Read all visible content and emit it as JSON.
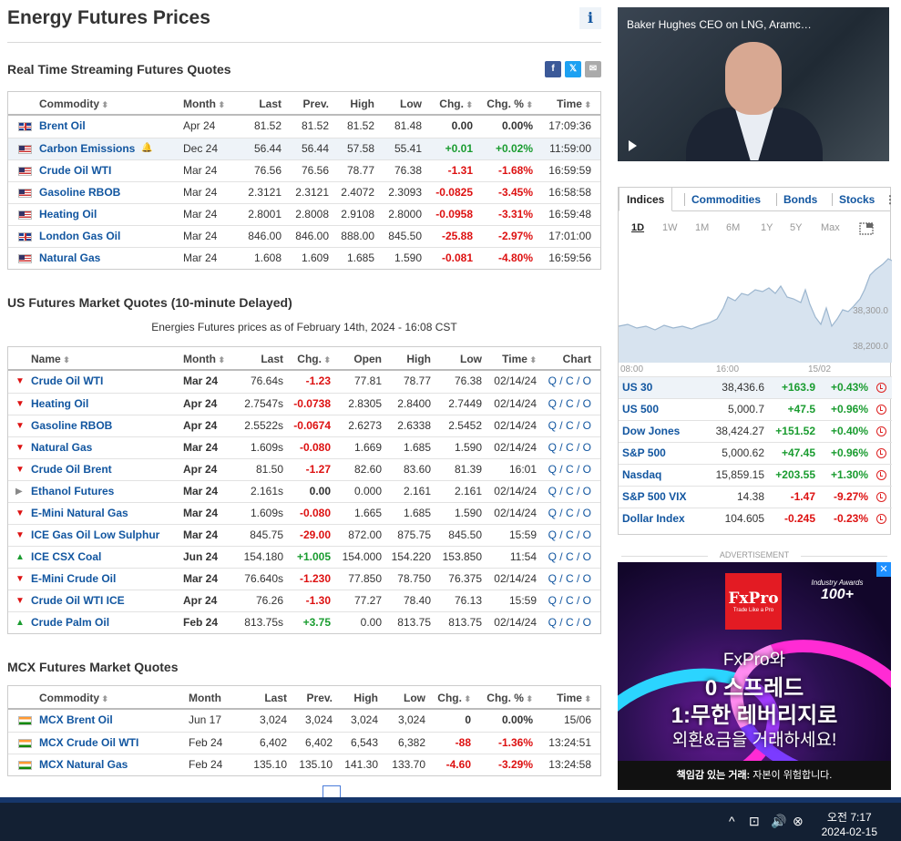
{
  "page": {
    "title": "Energy Futures Prices",
    "info_icon": "i"
  },
  "realtime": {
    "title": "Real Time Streaming Futures Quotes",
    "social": [
      {
        "name": "facebook-icon",
        "glyph": "f",
        "color": "#3b5998"
      },
      {
        "name": "x-twitter-icon",
        "glyph": "𝕏",
        "color": "#1da1f2"
      },
      {
        "name": "email-icon",
        "glyph": "✉",
        "color": "#aaa"
      }
    ],
    "headers": [
      "Commodity",
      "Month",
      "Last",
      "Prev.",
      "High",
      "Low",
      "Chg.",
      "Chg. %",
      "Time"
    ],
    "rows": [
      {
        "flag": "uk",
        "name": "Brent Oil",
        "month": "Apr 24",
        "last": "81.52",
        "prev": "81.52",
        "high": "81.52",
        "low": "81.48",
        "chg": "0.00",
        "pct": "0.00%",
        "time": "17:09:36",
        "dir": "nt"
      },
      {
        "flag": "us",
        "name": "Carbon Emissions",
        "month": "Dec 24",
        "last": "56.44",
        "prev": "56.44",
        "high": "57.58",
        "low": "55.41",
        "chg": "+0.01",
        "pct": "+0.02%",
        "time": "11:59:00",
        "dir": "pos",
        "hl": true
      },
      {
        "flag": "us",
        "name": "Crude Oil WTI",
        "month": "Mar 24",
        "last": "76.56",
        "prev": "76.56",
        "high": "78.77",
        "low": "76.38",
        "chg": "-1.31",
        "pct": "-1.68%",
        "time": "16:59:59",
        "dir": "neg"
      },
      {
        "flag": "us",
        "name": "Gasoline RBOB",
        "month": "Mar 24",
        "last": "2.3121",
        "prev": "2.3121",
        "high": "2.4072",
        "low": "2.3093",
        "chg": "-0.0825",
        "pct": "-3.45%",
        "time": "16:58:58",
        "dir": "neg"
      },
      {
        "flag": "us",
        "name": "Heating Oil",
        "month": "Mar 24",
        "last": "2.8001",
        "prev": "2.8008",
        "high": "2.9108",
        "low": "2.8000",
        "chg": "-0.0958",
        "pct": "-3.31%",
        "time": "16:59:48",
        "dir": "neg"
      },
      {
        "flag": "uk",
        "name": "London Gas Oil",
        "month": "Mar 24",
        "last": "846.00",
        "prev": "846.00",
        "high": "888.00",
        "low": "845.50",
        "chg": "-25.88",
        "pct": "-2.97%",
        "time": "17:01:00",
        "dir": "neg"
      },
      {
        "flag": "us",
        "name": "Natural Gas",
        "month": "Mar 24",
        "last": "1.608",
        "prev": "1.609",
        "high": "1.685",
        "low": "1.590",
        "chg": "-0.081",
        "pct": "-4.80%",
        "time": "16:59:56",
        "dir": "neg"
      }
    ]
  },
  "us": {
    "title": "US Futures Market Quotes (10-minute Delayed)",
    "subtitle": "Energies Futures prices as of February 14th, 2024 - 16:08 CST",
    "headers": [
      "Name",
      "Month",
      "Last",
      "Chg.",
      "Open",
      "High",
      "Low",
      "Time",
      "Chart"
    ],
    "rows": [
      {
        "dir": "dn",
        "name": "Crude Oil WTI",
        "month": "Mar 24",
        "last": "76.64s",
        "chg": "-1.23",
        "open": "77.81",
        "high": "78.77",
        "low": "76.38",
        "time": "02/14/24"
      },
      {
        "dir": "dn",
        "name": "Heating Oil",
        "month": "Apr 24",
        "last": "2.7547s",
        "chg": "-0.0738",
        "open": "2.8305",
        "high": "2.8400",
        "low": "2.7449",
        "time": "02/14/24"
      },
      {
        "dir": "dn",
        "name": "Gasoline RBOB",
        "month": "Apr 24",
        "last": "2.5522s",
        "chg": "-0.0674",
        "open": "2.6273",
        "high": "2.6338",
        "low": "2.5452",
        "time": "02/14/24"
      },
      {
        "dir": "dn",
        "name": "Natural Gas",
        "month": "Mar 24",
        "last": "1.609s",
        "chg": "-0.080",
        "open": "1.669",
        "high": "1.685",
        "low": "1.590",
        "time": "02/14/24"
      },
      {
        "dir": "dn",
        "name": "Crude Oil Brent",
        "month": "Apr 24",
        "last": "81.50",
        "chg": "-1.27",
        "open": "82.60",
        "high": "83.60",
        "low": "81.39",
        "time": "16:01"
      },
      {
        "dir": "nt",
        "name": "Ethanol Futures",
        "month": "Mar 24",
        "last": "2.161s",
        "chg": "0.00",
        "open": "0.000",
        "high": "2.161",
        "low": "2.161",
        "time": "02/14/24"
      },
      {
        "dir": "dn",
        "name": "E-Mini Natural Gas",
        "month": "Mar 24",
        "last": "1.609s",
        "chg": "-0.080",
        "open": "1.665",
        "high": "1.685",
        "low": "1.590",
        "time": "02/14/24"
      },
      {
        "dir": "dn",
        "name": "ICE Gas Oil Low Sulphur",
        "month": "Mar 24",
        "last": "845.75",
        "chg": "-29.00",
        "open": "872.00",
        "high": "875.75",
        "low": "845.50",
        "time": "15:59"
      },
      {
        "dir": "up",
        "name": "ICE CSX Coal",
        "month": "Jun 24",
        "last": "154.180",
        "chg": "+1.005",
        "open": "154.000",
        "high": "154.220",
        "low": "153.850",
        "time": "11:54"
      },
      {
        "dir": "dn",
        "name": "E-Mini Crude Oil",
        "month": "Mar 24",
        "last": "76.640s",
        "chg": "-1.230",
        "open": "77.850",
        "high": "78.750",
        "low": "76.375",
        "time": "02/14/24"
      },
      {
        "dir": "dn",
        "name": "Crude Oil WTI ICE",
        "month": "Apr 24",
        "last": "76.26",
        "chg": "-1.30",
        "open": "77.27",
        "high": "78.40",
        "low": "76.13",
        "time": "15:59"
      },
      {
        "dir": "up",
        "name": "Crude Palm Oil",
        "month": "Feb 24",
        "last": "813.75s",
        "chg": "+3.75",
        "open": "0.00",
        "high": "813.75",
        "low": "813.75",
        "time": "02/14/24"
      }
    ],
    "chart_links": [
      "Q",
      "C",
      "O"
    ]
  },
  "mcx": {
    "title": "MCX Futures Market Quotes",
    "headers": [
      "Commodity",
      "Month",
      "Last",
      "Prev.",
      "High",
      "Low",
      "Chg.",
      "Chg. %",
      "Time"
    ],
    "rows": [
      {
        "name": "MCX Brent Oil",
        "month": "Jun 17",
        "last": "3,024",
        "prev": "3,024",
        "high": "3,024",
        "low": "3,024",
        "chg": "0",
        "pct": "0.00%",
        "time": "15/06",
        "dir": "nt"
      },
      {
        "name": "MCX Crude Oil WTI",
        "month": "Feb 24",
        "last": "6,402",
        "prev": "6,402",
        "high": "6,543",
        "low": "6,382",
        "chg": "-88",
        "pct": "-1.36%",
        "time": "13:24:51",
        "dir": "neg"
      },
      {
        "name": "MCX Natural Gas",
        "month": "Feb 24",
        "last": "135.10",
        "prev": "135.10",
        "high": "141.30",
        "low": "133.70",
        "chg": "-4.60",
        "pct": "-3.29%",
        "time": "13:24:58",
        "dir": "neg"
      }
    ]
  },
  "video": {
    "title": "Baker Hughes CEO on LNG, Aramc…"
  },
  "markets": {
    "tabs": [
      "Indices",
      "Commodities",
      "Bonds",
      "Stocks"
    ],
    "more": "⋮",
    "ranges": [
      "1D",
      "1W",
      "1M",
      "6M",
      "1Y",
      "5Y",
      "Max"
    ],
    "chart_labels": {
      "y1": "38,300.0",
      "y2": "38,200.0",
      "x1": "08:00",
      "x2": "16:00",
      "x3": "15/02"
    },
    "rows": [
      {
        "name": "US 30",
        "last": "38,436.6",
        "chg": "+163.9",
        "pct": "+0.43%",
        "dir": "pos",
        "hl": true
      },
      {
        "name": "US 500",
        "last": "5,000.7",
        "chg": "+47.5",
        "pct": "+0.96%",
        "dir": "pos"
      },
      {
        "name": "Dow Jones",
        "last": "38,424.27",
        "chg": "+151.52",
        "pct": "+0.40%",
        "dir": "pos"
      },
      {
        "name": "S&P 500",
        "last": "5,000.62",
        "chg": "+47.45",
        "pct": "+0.96%",
        "dir": "pos"
      },
      {
        "name": "Nasdaq",
        "last": "15,859.15",
        "chg": "+203.55",
        "pct": "+1.30%",
        "dir": "pos"
      },
      {
        "name": "S&P 500 VIX",
        "last": "14.38",
        "chg": "-1.47",
        "pct": "-9.27%",
        "dir": "neg"
      },
      {
        "name": "Dollar Index",
        "last": "104.605",
        "chg": "-0.245",
        "pct": "-0.23%",
        "dir": "neg"
      }
    ]
  },
  "ad": {
    "label": "ADVERTISEMENT",
    "brand": "FxPro",
    "tagline": "Trade Like a Pro",
    "award1": "Industry Awards",
    "award2": "100+",
    "line1": "FxPro와",
    "line2": "0 스프레드",
    "line3": "1:무한 레버리지로",
    "line4": "외환&금을 거래하세요!",
    "foot_bold": "책임감 있는 거래:",
    "foot": " 자본이 위험합니다.",
    "close": "✕"
  },
  "taskbar": {
    "time": "오전 7:17",
    "date": "2024-02-15",
    "icons": [
      "^",
      "⊡",
      "🔊",
      "⊗"
    ]
  }
}
